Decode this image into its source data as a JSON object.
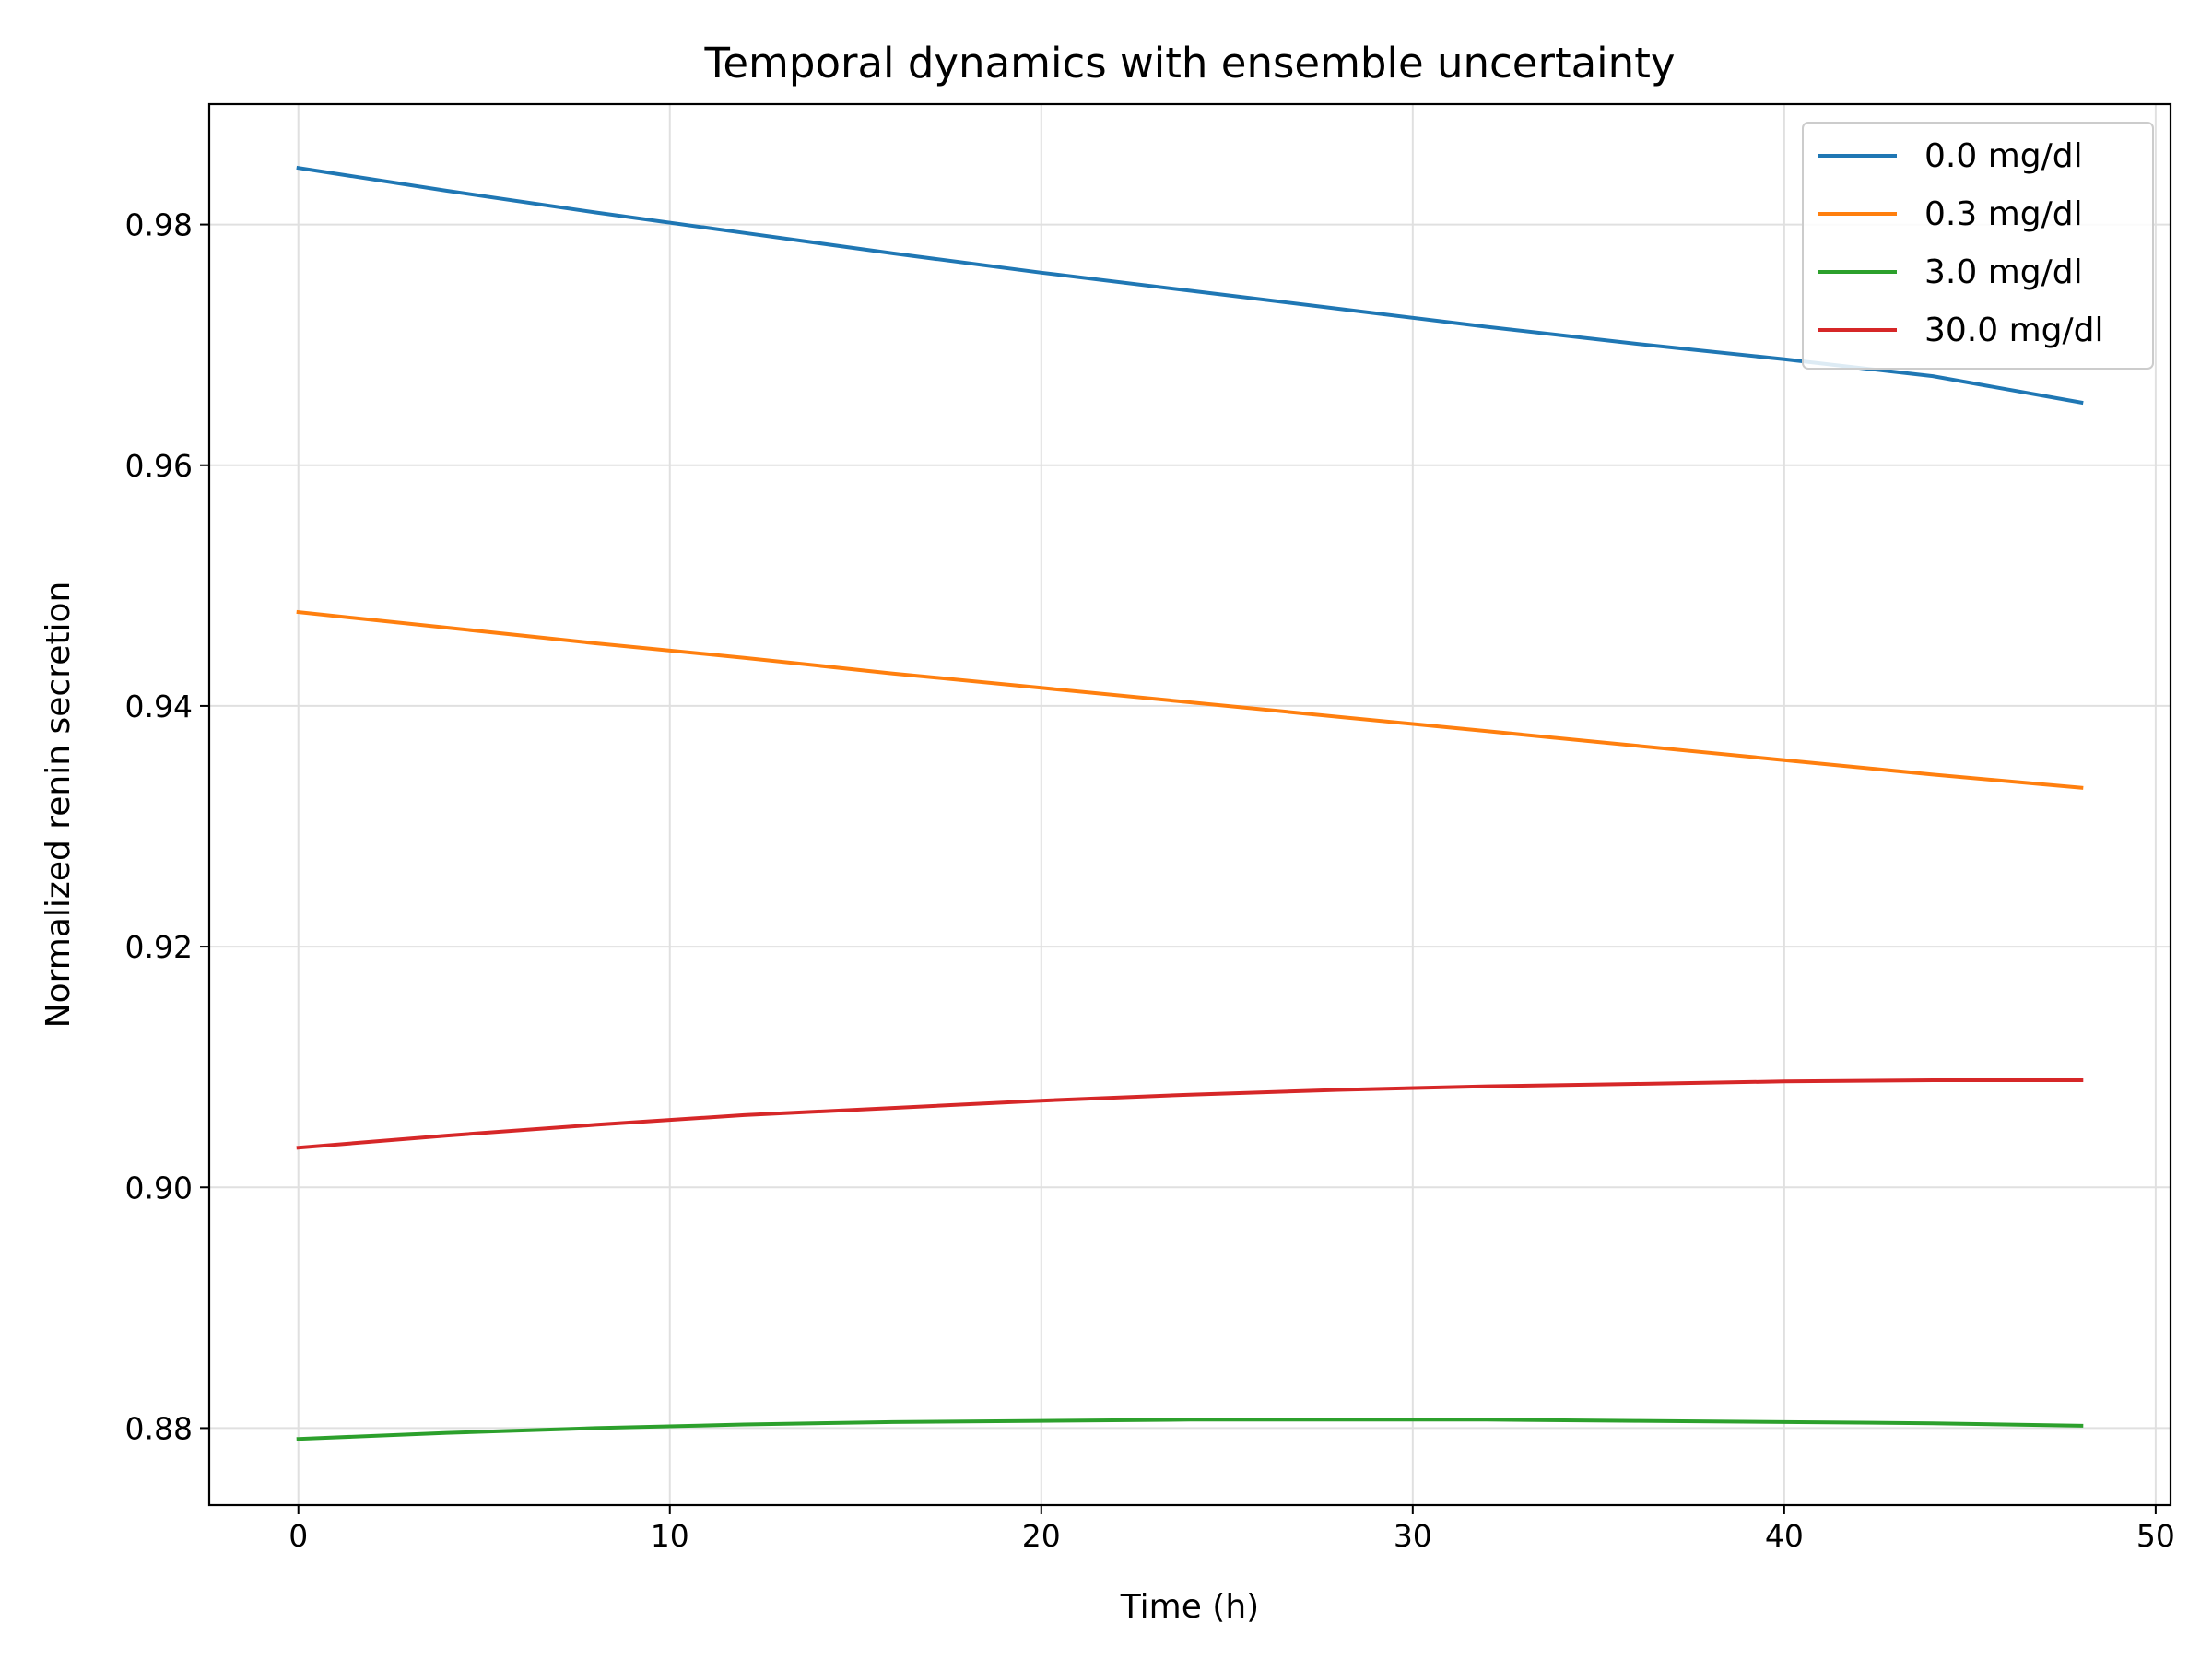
{
  "chart_data": {
    "type": "line",
    "title": "Temporal dynamics with ensemble uncertainty",
    "xlabel": "Time (h)",
    "ylabel": "Normalized renin secretion",
    "xlim": [
      -2.4,
      50.4
    ],
    "ylim": [
      0.8736,
      0.99
    ],
    "xticks": [
      0,
      10,
      20,
      30,
      40,
      50
    ],
    "xtick_labels": [
      "0",
      "10",
      "20",
      "30",
      "40",
      "50"
    ],
    "yticks": [
      0.88,
      0.9,
      0.92,
      0.94,
      0.96,
      0.98
    ],
    "ytick_labels": [
      "0.88",
      "0.90",
      "0.92",
      "0.94",
      "0.96",
      "0.98"
    ],
    "grid": true,
    "legend_position": "top-right",
    "x": [
      0,
      4,
      8,
      12,
      16,
      20,
      24,
      28,
      32,
      36,
      40,
      44,
      48
    ],
    "series": [
      {
        "name": "0.0 mg/dl",
        "color": "#1f77b4",
        "values": [
          0.9847,
          0.9828,
          0.981,
          0.9793,
          0.9776,
          0.976,
          0.9745,
          0.973,
          0.9715,
          0.9701,
          0.9688,
          0.9674,
          0.9652
        ]
      },
      {
        "name": "0.3 mg/dl",
        "color": "#ff7f0e",
        "values": [
          0.9478,
          0.9465,
          0.9452,
          0.944,
          0.9427,
          0.9415,
          0.9403,
          0.9391,
          0.9379,
          0.9367,
          0.9355,
          0.9343,
          0.9332
        ]
      },
      {
        "name": "3.0 mg/dl",
        "color": "#2ca02c",
        "values": [
          0.8791,
          0.8796,
          0.88,
          0.8803,
          0.8805,
          0.8806,
          0.8807,
          0.8807,
          0.8807,
          0.8806,
          0.8805,
          0.8804,
          0.8802
        ]
      },
      {
        "name": "30.0 mg/dl",
        "color": "#d62728",
        "values": [
          0.9033,
          0.9043,
          0.9052,
          0.906,
          0.9066,
          0.9072,
          0.9077,
          0.9081,
          0.9084,
          0.9086,
          0.9088,
          0.9089,
          0.9089
        ]
      }
    ]
  }
}
